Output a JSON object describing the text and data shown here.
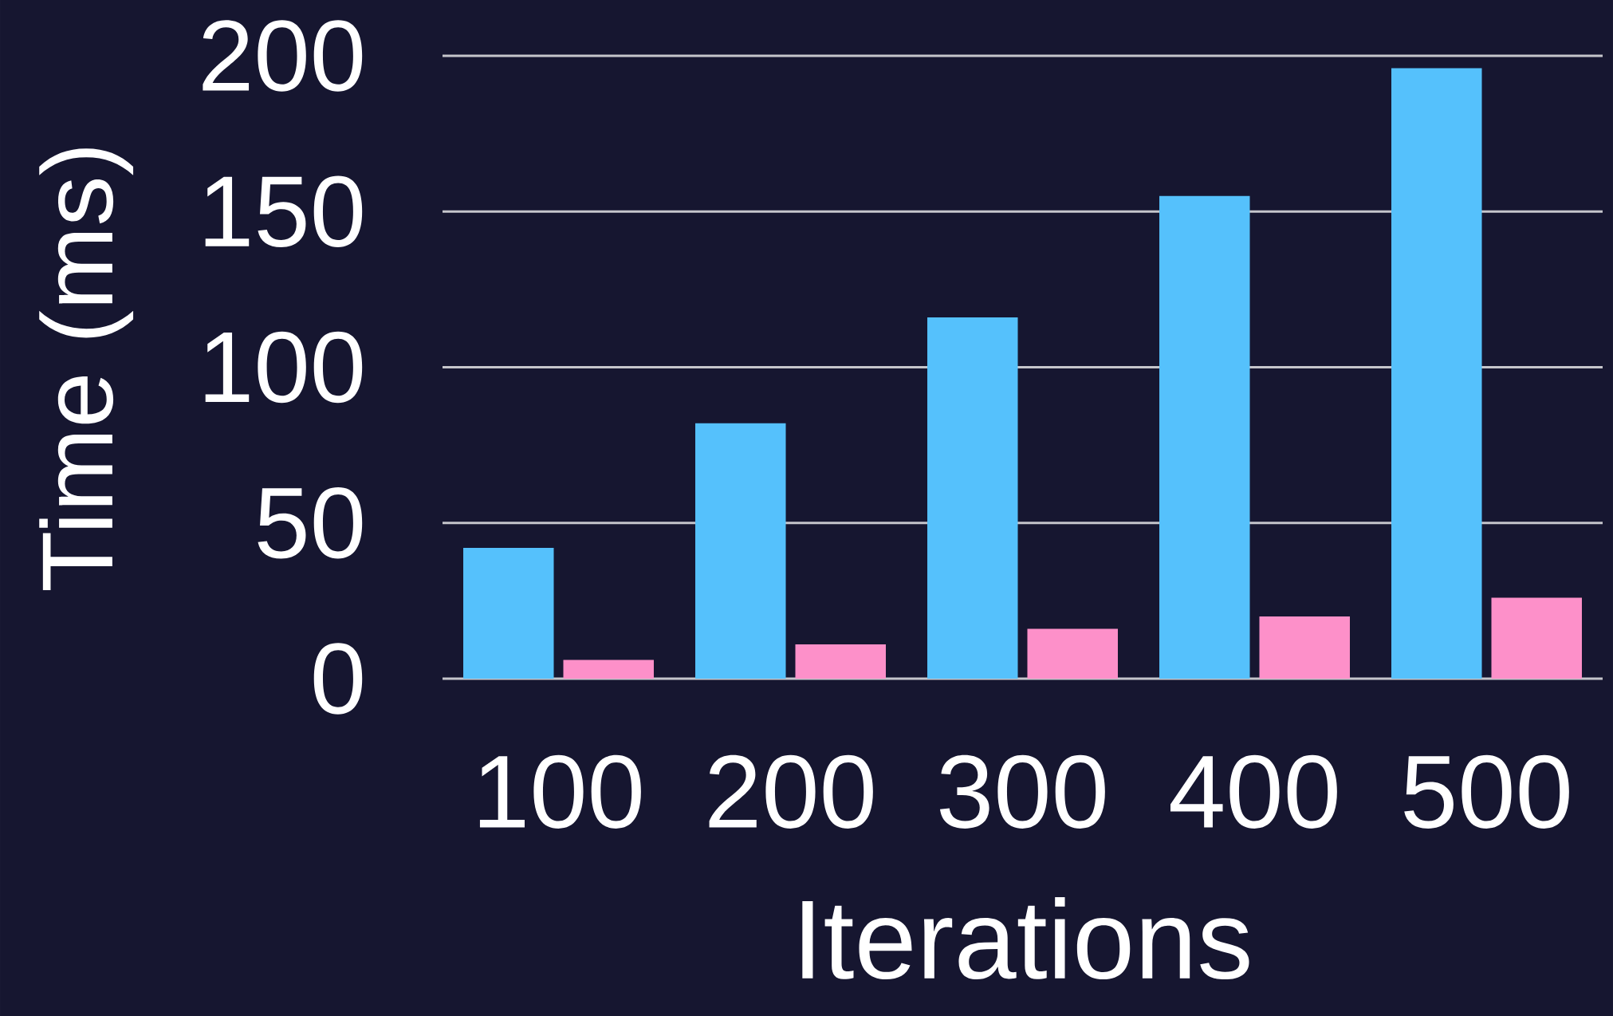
{
  "chart_data": {
    "type": "bar",
    "xlabel": "Iterations",
    "ylabel": "Time (ms)",
    "categories": [
      "100",
      "200",
      "300",
      "400",
      "500"
    ],
    "series": [
      {
        "color": "#55c1fc",
        "values": [
          42,
          82,
          116,
          155,
          196
        ]
      },
      {
        "color": "#fd90c9",
        "values": [
          6,
          11,
          16,
          20,
          26
        ]
      }
    ],
    "ylim": [
      0,
      200
    ],
    "yticks": [
      0,
      50,
      100,
      150,
      200
    ],
    "grid": "y"
  }
}
